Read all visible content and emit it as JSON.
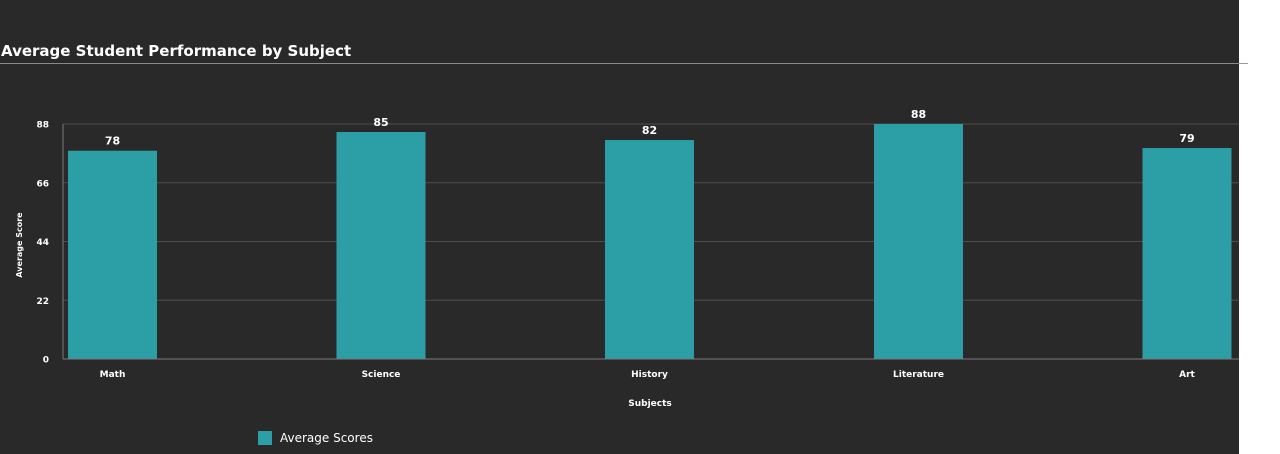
{
  "colors": {
    "background": "#292929",
    "bar": "#2b9ea6",
    "grid": "#4e4e4e",
    "text": "#ffffff"
  },
  "chart_data": {
    "type": "bar",
    "title": "Average Student Performance by Subject",
    "xlabel": "Subjects",
    "ylabel": "Average Score",
    "categories": [
      "Math",
      "Science",
      "History",
      "Literature",
      "Art"
    ],
    "series": [
      {
        "name": "Average Scores",
        "values": [
          78,
          85,
          82,
          88,
          79
        ]
      }
    ],
    "yticks": [
      0,
      22,
      44,
      66,
      88
    ],
    "ylim": [
      0,
      88
    ],
    "grid": true,
    "data_labels": true,
    "legend": "bottom-left"
  }
}
